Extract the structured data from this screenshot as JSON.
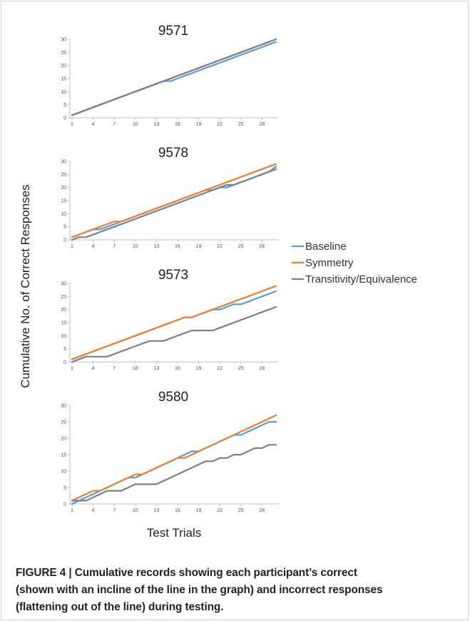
{
  "figure": {
    "ylabel": "Cumulative No. of Correct Responses",
    "xlabel": "Test Trials",
    "legend": {
      "placement": "right",
      "items": [
        {
          "name": "Baseline",
          "color": "#5b9bd5"
        },
        {
          "name": "Symmetry",
          "color": "#ed7d31"
        },
        {
          "name": "Transitivity/Equivalence",
          "color": "#7f7f7f"
        }
      ]
    },
    "caption": {
      "lines": [
        "FIGURE 4 | Cumulative records showing each participant’s correct",
        "(shown with an incline of the line in the graph) and incorrect responses",
        "(flattening out of the line) during testing."
      ]
    }
  },
  "chart_data": [
    {
      "type": "line",
      "title": "9571",
      "x": [
        1,
        2,
        3,
        4,
        5,
        6,
        7,
        8,
        9,
        10,
        11,
        12,
        13,
        14,
        15,
        16,
        17,
        18,
        19,
        20,
        21,
        22,
        23,
        24,
        25,
        26,
        27,
        28,
        29,
        30
      ],
      "xticks": [
        1,
        4,
        7,
        10,
        13,
        16,
        19,
        22,
        25,
        28
      ],
      "ylim": [
        0,
        30
      ],
      "yticks": [
        0,
        5,
        10,
        15,
        20,
        25,
        30
      ],
      "grid": false,
      "series": [
        {
          "name": "Baseline",
          "color": "#5b9bd5",
          "values": [
            1,
            2,
            3,
            4,
            5,
            6,
            7,
            8,
            9,
            10,
            11,
            12,
            13,
            14,
            14,
            15,
            16,
            17,
            18,
            19,
            20,
            21,
            22,
            23,
            24,
            25,
            26,
            27,
            28,
            29
          ]
        },
        {
          "name": "Symmetry",
          "color": "#ed7d31",
          "values": [
            1,
            2,
            3,
            4,
            5,
            6,
            7,
            8,
            9,
            10,
            11,
            12,
            13,
            14,
            15,
            16,
            17,
            18,
            19,
            20,
            21,
            22,
            23,
            24,
            25,
            26,
            27,
            28,
            29,
            30
          ]
        },
        {
          "name": "Transitivity/Equivalence",
          "color": "#7f7f7f",
          "values": [
            1,
            2,
            3,
            4,
            5,
            6,
            7,
            8,
            9,
            10,
            11,
            12,
            13,
            14,
            15,
            16,
            17,
            18,
            19,
            20,
            21,
            22,
            23,
            24,
            25,
            26,
            27,
            28,
            29,
            30
          ]
        }
      ]
    },
    {
      "type": "line",
      "title": "9578",
      "x": [
        1,
        2,
        3,
        4,
        5,
        6,
        7,
        8,
        9,
        10,
        11,
        12,
        13,
        14,
        15,
        16,
        17,
        18,
        19,
        20,
        21,
        22,
        23,
        24,
        25,
        26,
        27,
        28,
        29,
        30
      ],
      "xticks": [
        1,
        4,
        7,
        10,
        13,
        16,
        19,
        22,
        25,
        28
      ],
      "ylim": [
        0,
        30
      ],
      "yticks": [
        0,
        5,
        10,
        15,
        20,
        25,
        30
      ],
      "grid": false,
      "series": [
        {
          "name": "Baseline",
          "color": "#5b9bd5",
          "values": [
            1,
            2,
            3,
            4,
            4,
            5,
            6,
            7,
            8,
            9,
            10,
            11,
            12,
            13,
            14,
            15,
            16,
            17,
            18,
            19,
            19,
            20,
            20,
            21,
            22,
            23,
            24,
            25,
            26,
            28
          ]
        },
        {
          "name": "Symmetry",
          "color": "#ed7d31",
          "values": [
            1,
            2,
            3,
            4,
            5,
            6,
            7,
            7,
            8,
            9,
            10,
            11,
            12,
            13,
            14,
            15,
            16,
            17,
            18,
            19,
            20,
            21,
            22,
            23,
            24,
            25,
            26,
            27,
            28,
            29
          ]
        },
        {
          "name": "Transitivity/Equivalence",
          "color": "#7f7f7f",
          "values": [
            0,
            1,
            1,
            2,
            3,
            4,
            5,
            6,
            7,
            8,
            9,
            10,
            11,
            12,
            13,
            14,
            15,
            16,
            17,
            18,
            19,
            20,
            21,
            21,
            22,
            23,
            24,
            25,
            26,
            27
          ]
        }
      ]
    },
    {
      "type": "line",
      "title": "9573",
      "x": [
        1,
        2,
        3,
        4,
        5,
        6,
        7,
        8,
        9,
        10,
        11,
        12,
        13,
        14,
        15,
        16,
        17,
        18,
        19,
        20,
        21,
        22,
        23,
        24,
        25,
        26,
        27,
        28,
        29,
        30
      ],
      "xticks": [
        1,
        4,
        7,
        10,
        13,
        16,
        19,
        22,
        25,
        28
      ],
      "ylim": [
        0,
        30
      ],
      "yticks": [
        0,
        5,
        10,
        15,
        20,
        25,
        30
      ],
      "grid": false,
      "series": [
        {
          "name": "Baseline",
          "color": "#5b9bd5",
          "values": [
            1,
            2,
            3,
            4,
            5,
            6,
            7,
            8,
            9,
            10,
            11,
            12,
            13,
            14,
            15,
            16,
            17,
            17,
            18,
            19,
            20,
            20,
            21,
            22,
            22,
            23,
            24,
            25,
            26,
            27
          ]
        },
        {
          "name": "Symmetry",
          "color": "#ed7d31",
          "values": [
            1,
            2,
            3,
            4,
            5,
            6,
            7,
            8,
            9,
            10,
            11,
            12,
            13,
            14,
            15,
            16,
            17,
            17,
            18,
            19,
            20,
            21,
            22,
            23,
            24,
            25,
            26,
            27,
            28,
            29
          ]
        },
        {
          "name": "Transitivity/Equivalence",
          "color": "#7f7f7f",
          "values": [
            0,
            1,
            2,
            2,
            2,
            2,
            3,
            4,
            5,
            6,
            7,
            8,
            8,
            8,
            9,
            10,
            11,
            12,
            12,
            12,
            12,
            13,
            14,
            15,
            16,
            17,
            18,
            19,
            20,
            21
          ]
        }
      ]
    },
    {
      "type": "line",
      "title": "9580",
      "x": [
        1,
        2,
        3,
        4,
        5,
        6,
        7,
        8,
        9,
        10,
        11,
        12,
        13,
        14,
        15,
        16,
        17,
        18,
        19,
        20,
        21,
        22,
        23,
        24,
        25,
        26,
        27,
        28,
        29,
        30
      ],
      "xticks": [
        1,
        4,
        7,
        10,
        13,
        16,
        19,
        22,
        25,
        28
      ],
      "ylim": [
        0,
        30
      ],
      "yticks": [
        0,
        5,
        10,
        15,
        20,
        25,
        30
      ],
      "grid": false,
      "series": [
        {
          "name": "Baseline",
          "color": "#5b9bd5",
          "values": [
            0,
            1,
            2,
            3,
            4,
            5,
            6,
            7,
            8,
            8,
            9,
            10,
            11,
            12,
            13,
            14,
            15,
            16,
            16,
            17,
            18,
            19,
            20,
            21,
            21,
            22,
            23,
            24,
            25,
            25
          ]
        },
        {
          "name": "Symmetry",
          "color": "#ed7d31",
          "values": [
            1,
            2,
            3,
            4,
            4,
            5,
            6,
            7,
            8,
            9,
            9,
            10,
            11,
            12,
            13,
            14,
            14,
            15,
            16,
            17,
            18,
            19,
            20,
            21,
            22,
            23,
            24,
            25,
            26,
            27
          ]
        },
        {
          "name": "Transitivity/Equivalence",
          "color": "#7f7f7f",
          "values": [
            1,
            1,
            1,
            2,
            3,
            4,
            4,
            4,
            5,
            6,
            6,
            6,
            6,
            7,
            8,
            9,
            10,
            11,
            12,
            13,
            13,
            14,
            14,
            15,
            15,
            16,
            17,
            17,
            18,
            18
          ]
        }
      ]
    }
  ]
}
